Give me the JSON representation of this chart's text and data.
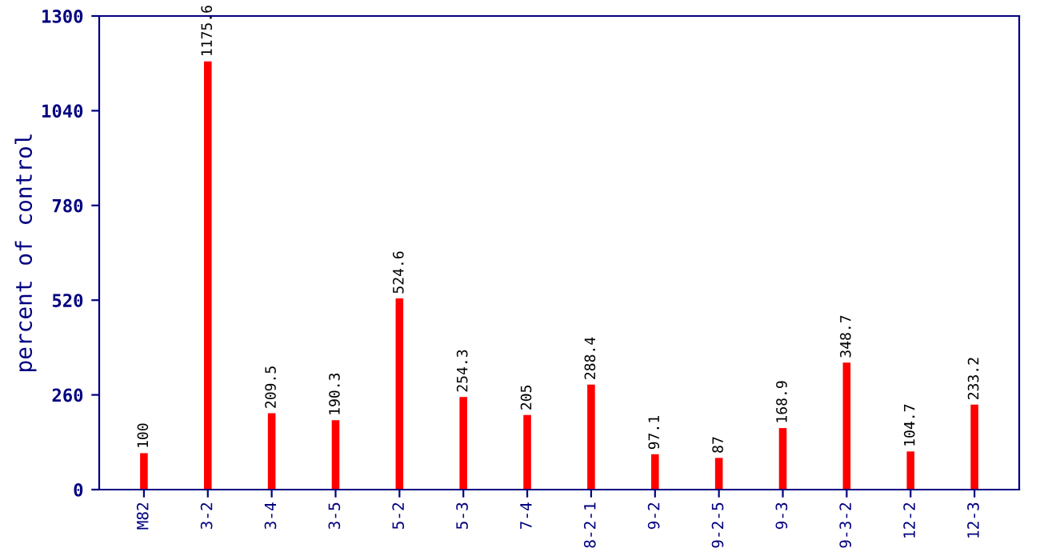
{
  "chart_data": {
    "type": "bar",
    "ylabel": "percent of control",
    "categories": [
      "M82",
      "3-2",
      "3-4",
      "3-5",
      "5-2",
      "5-3",
      "7-4",
      "8-2-1",
      "9-2",
      "9-2-5",
      "9-3",
      "9-3-2",
      "12-2",
      "12-3"
    ],
    "values": [
      100,
      1175.6,
      209.5,
      190.3,
      524.6,
      254.3,
      205,
      288.4,
      97.1,
      87,
      168.9,
      348.7,
      104.7,
      233.2
    ],
    "value_labels": [
      "100",
      "1175.6",
      "209.5",
      "190.3",
      "524.6",
      "254.3",
      "205",
      "288.4",
      "97.1",
      "87",
      "168.9",
      "348.7",
      "104.7",
      "233.2"
    ],
    "color": "#ff0000",
    "ylim": [
      0,
      1300
    ],
    "yticks": [
      0,
      260,
      520,
      780,
      1040,
      1300
    ],
    "grid": false,
    "legend": false
  }
}
